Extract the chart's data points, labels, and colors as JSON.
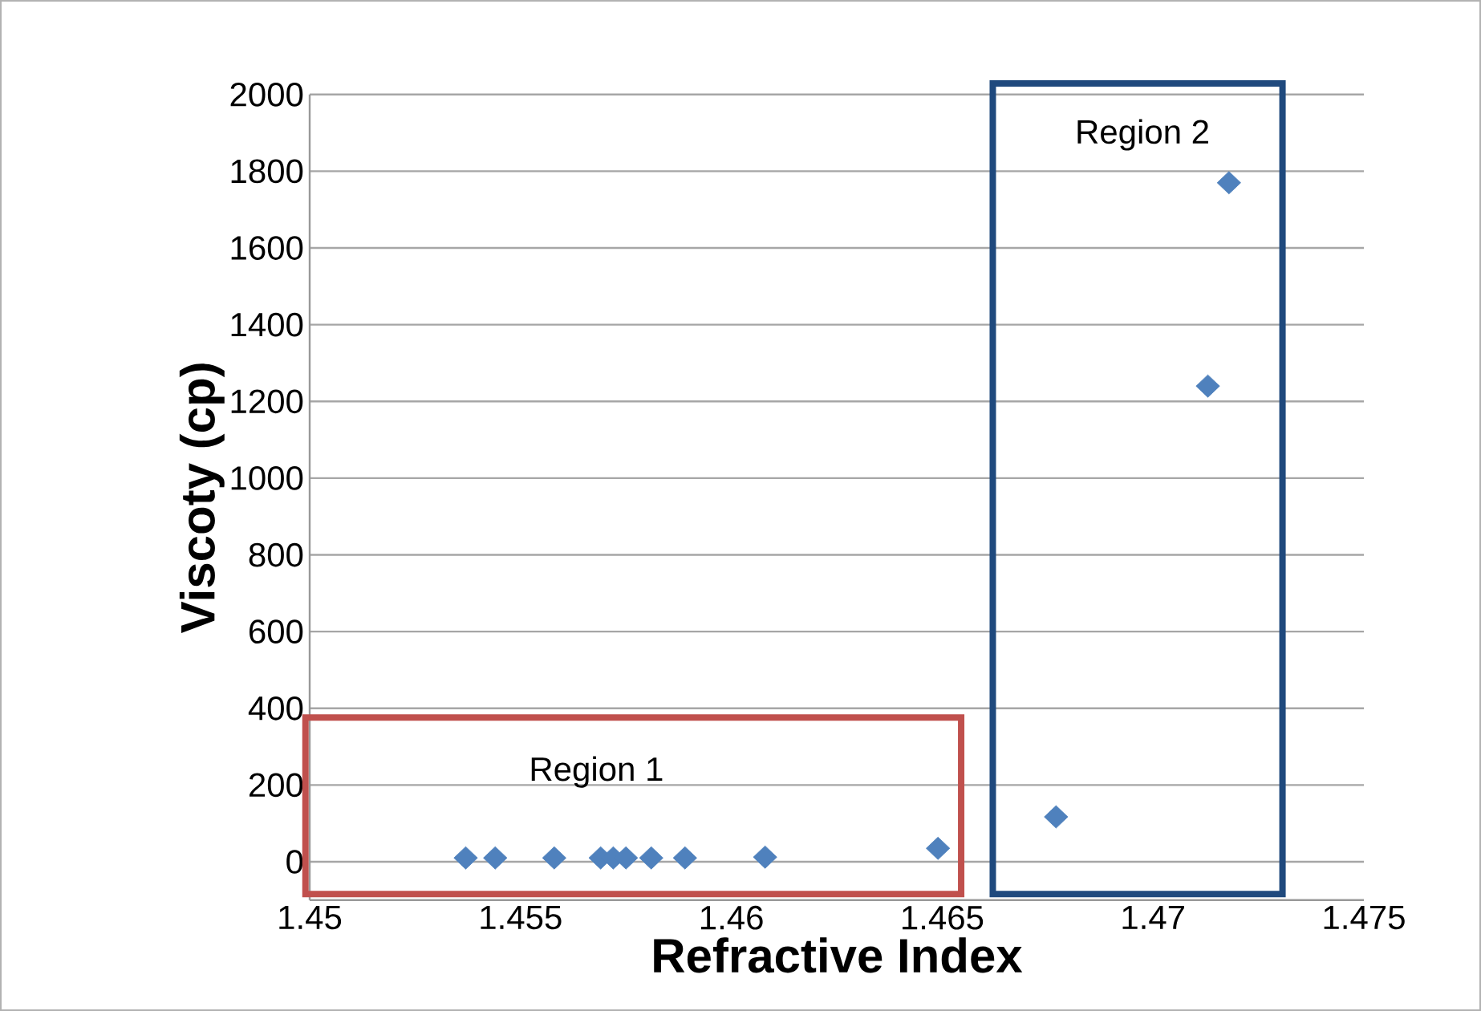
{
  "chart_data": {
    "type": "scatter",
    "xlabel": "Refractive Index",
    "ylabel": "Viscoty (cp)",
    "x": [
      1.4537,
      1.4544,
      1.4558,
      1.4569,
      1.4572,
      1.4575,
      1.4581,
      1.4589,
      1.4608,
      1.4649,
      1.4677,
      1.4713,
      1.4718
    ],
    "values": [
      10,
      10,
      10,
      10,
      10,
      10,
      10,
      10,
      12,
      35,
      117,
      1240,
      1770
    ],
    "color": "#4f81bd",
    "marker": "diamond",
    "xlim": [
      1.45,
      1.475
    ],
    "xticks": [
      1.45,
      1.455,
      1.46,
      1.465,
      1.47,
      1.475
    ],
    "ylim": [
      -100,
      2000
    ],
    "yticks": [
      0,
      200,
      400,
      600,
      800,
      1000,
      1200,
      1400,
      1600,
      1800,
      2000
    ],
    "grid": "y",
    "annotations": [
      "Region 1",
      "Region 2"
    ]
  }
}
